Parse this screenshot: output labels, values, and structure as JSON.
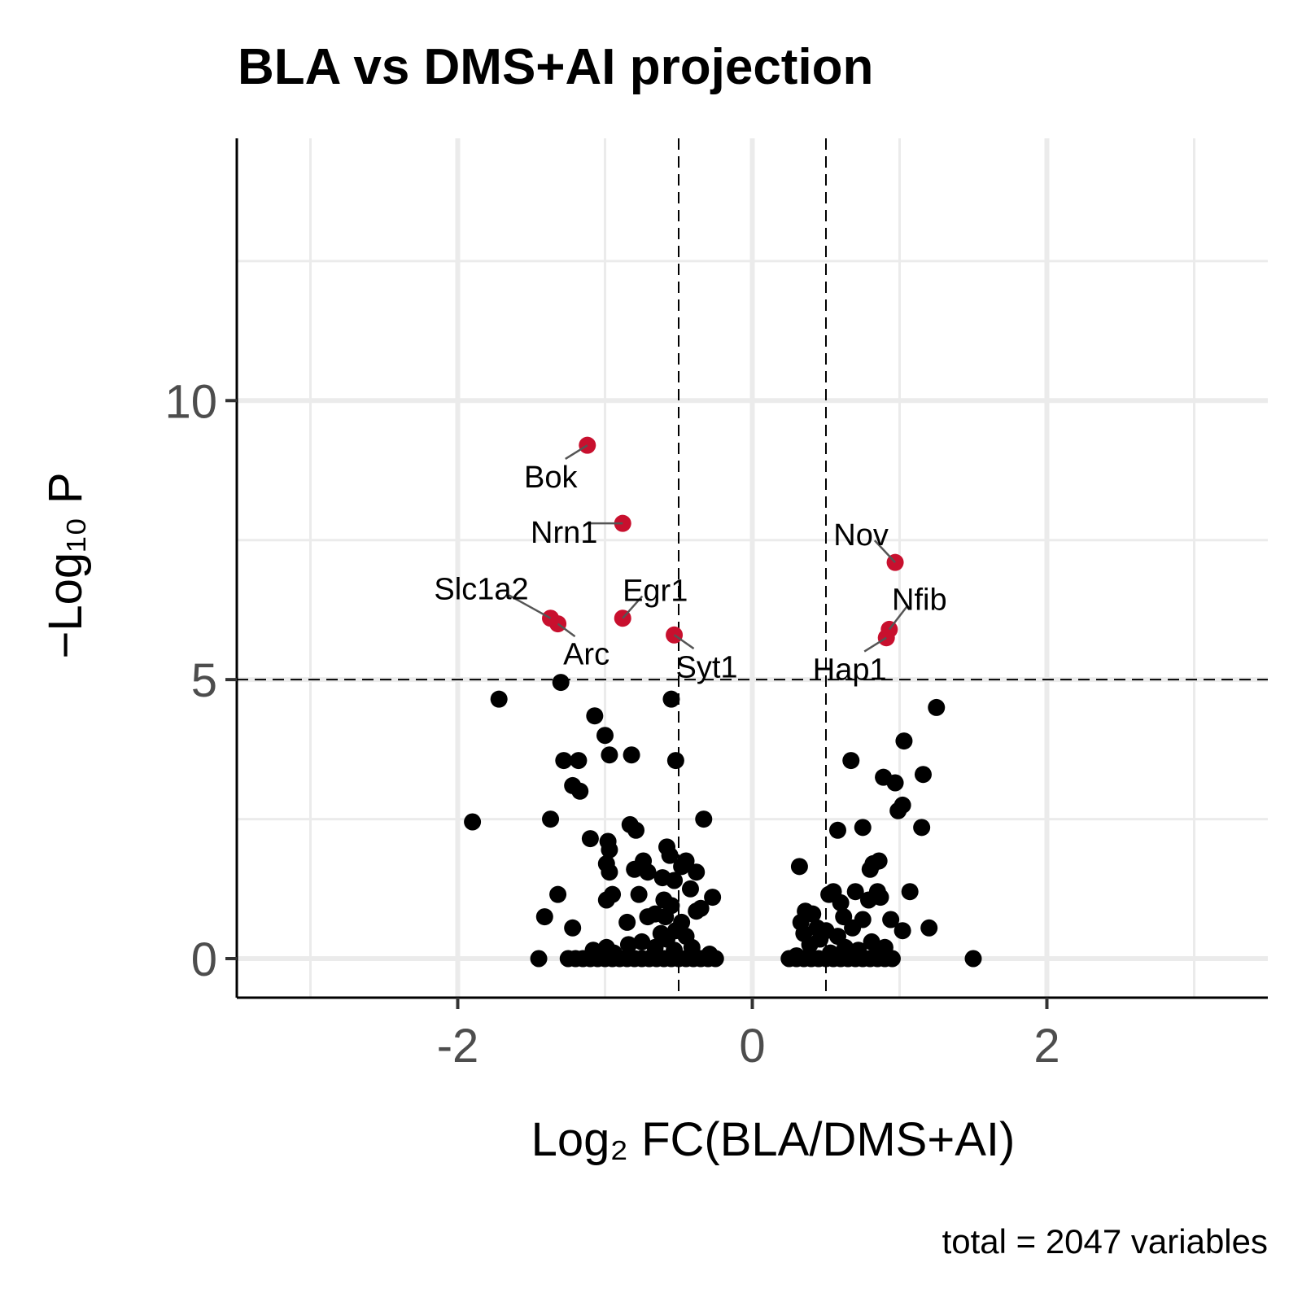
{
  "chart_data": {
    "type": "scatter",
    "title": "BLA vs DMS+AI projection",
    "xlabel": "Log₂ FC(BLA/DMS+AI)",
    "ylabel": "−Log₁₀ P",
    "caption": "total = 2047 variables",
    "xlim": [
      -3.5,
      3.5
    ],
    "ylim": [
      -0.7,
      14.7
    ],
    "x_ticks": [
      -2,
      0,
      2
    ],
    "x_tick_labels": [
      "-2",
      "0",
      "2"
    ],
    "y_ticks": [
      0,
      5,
      10
    ],
    "y_tick_labels": [
      "0",
      "5",
      "10"
    ],
    "grid": true,
    "fc_cutoff": [
      -0.5,
      0.5
    ],
    "p_cutoff": 5,
    "colors": {
      "significant": "#C8102E",
      "ns": "#000000"
    },
    "labeled_points": [
      {
        "label": "Bok",
        "x": -1.12,
        "y": 9.2
      },
      {
        "label": "Nrn1",
        "x": -0.88,
        "y": 7.8
      },
      {
        "label": "Slc1a2",
        "x": -1.37,
        "y": 6.1
      },
      {
        "label": "Arc",
        "x": -1.32,
        "y": 6.0
      },
      {
        "label": "Egr1",
        "x": -0.88,
        "y": 6.1
      },
      {
        "label": "Syt1",
        "x": -0.53,
        "y": 5.8
      },
      {
        "label": "Nov",
        "x": 0.97,
        "y": 7.1
      },
      {
        "label": "Nfib",
        "x": 0.93,
        "y": 5.9
      },
      {
        "label": "Hap1",
        "x": 0.91,
        "y": 5.75
      }
    ],
    "points": [
      [
        -1.72,
        4.65
      ],
      [
        -1.3,
        4.95
      ],
      [
        -0.55,
        4.65
      ],
      [
        -1.07,
        4.35
      ],
      [
        -1.0,
        4.0
      ],
      [
        -0.97,
        3.65
      ],
      [
        -0.82,
        3.65
      ],
      [
        -1.28,
        3.55
      ],
      [
        -1.18,
        3.55
      ],
      [
        -0.52,
        3.55
      ],
      [
        -1.22,
        3.1
      ],
      [
        -1.17,
        3.0
      ],
      [
        -1.9,
        2.45
      ],
      [
        -1.37,
        2.5
      ],
      [
        -0.33,
        2.5
      ],
      [
        -0.83,
        2.4
      ],
      [
        -0.79,
        2.3
      ],
      [
        -1.1,
        2.15
      ],
      [
        -0.98,
        2.1
      ],
      [
        -0.97,
        1.95
      ],
      [
        -0.58,
        2.0
      ],
      [
        -0.56,
        1.85
      ],
      [
        -0.45,
        1.75
      ],
      [
        -0.99,
        1.7
      ],
      [
        -0.74,
        1.75
      ],
      [
        -0.48,
        1.65
      ],
      [
        -0.97,
        1.55
      ],
      [
        -0.8,
        1.6
      ],
      [
        -0.71,
        1.55
      ],
      [
        -0.61,
        1.45
      ],
      [
        -0.38,
        1.55
      ],
      [
        -0.53,
        1.4
      ],
      [
        -0.42,
        1.25
      ],
      [
        -0.95,
        1.15
      ],
      [
        -0.99,
        1.05
      ],
      [
        -0.77,
        1.15
      ],
      [
        -0.6,
        1.05
      ],
      [
        -0.27,
        1.1
      ],
      [
        -1.32,
        1.15
      ],
      [
        -0.55,
        0.95
      ],
      [
        -0.38,
        0.85
      ],
      [
        -0.35,
        0.9
      ],
      [
        -0.66,
        0.8
      ],
      [
        -0.59,
        0.75
      ],
      [
        -0.71,
        0.75
      ],
      [
        -0.85,
        0.65
      ],
      [
        -0.48,
        0.65
      ],
      [
        -1.41,
        0.75
      ],
      [
        -1.22,
        0.55
      ],
      [
        -0.52,
        0.5
      ],
      [
        -0.62,
        0.45
      ],
      [
        -0.45,
        0.4
      ],
      [
        -0.58,
        0.35
      ],
      [
        -0.75,
        0.3
      ],
      [
        -0.84,
        0.25
      ],
      [
        -0.66,
        0.2
      ],
      [
        -0.53,
        0.15
      ],
      [
        -0.99,
        0.2
      ],
      [
        -0.94,
        0.1
      ],
      [
        -1.08,
        0.15
      ],
      [
        -0.41,
        0.2
      ],
      [
        -0.29,
        0.08
      ],
      [
        -1.45,
        0.0
      ],
      [
        -1.25,
        0.0
      ],
      [
        -1.2,
        0.0
      ],
      [
        -1.15,
        0.0
      ],
      [
        -1.1,
        0.0
      ],
      [
        -1.05,
        0.0
      ],
      [
        -1.0,
        0.0
      ],
      [
        -0.95,
        0.0
      ],
      [
        -0.9,
        0.0
      ],
      [
        -0.85,
        0.0
      ],
      [
        -0.8,
        0.0
      ],
      [
        -0.75,
        0.0
      ],
      [
        -0.7,
        0.0
      ],
      [
        -0.65,
        0.0
      ],
      [
        -0.6,
        0.0
      ],
      [
        -0.55,
        0.0
      ],
      [
        -0.5,
        0.0
      ],
      [
        -0.45,
        0.0
      ],
      [
        -0.4,
        0.0
      ],
      [
        -0.35,
        0.0
      ],
      [
        -0.3,
        0.0
      ],
      [
        -0.25,
        0.0
      ],
      [
        1.25,
        4.5
      ],
      [
        1.03,
        3.9
      ],
      [
        0.67,
        3.55
      ],
      [
        0.89,
        3.25
      ],
      [
        0.97,
        3.15
      ],
      [
        1.16,
        3.3
      ],
      [
        1.02,
        2.75
      ],
      [
        0.99,
        2.65
      ],
      [
        1.15,
        2.35
      ],
      [
        0.58,
        2.3
      ],
      [
        0.75,
        2.35
      ],
      [
        0.86,
        1.75
      ],
      [
        0.82,
        1.7
      ],
      [
        0.8,
        1.6
      ],
      [
        0.32,
        1.65
      ],
      [
        0.52,
        1.15
      ],
      [
        0.55,
        1.2
      ],
      [
        0.7,
        1.2
      ],
      [
        0.85,
        1.2
      ],
      [
        0.87,
        1.1
      ],
      [
        0.79,
        1.05
      ],
      [
        0.6,
        1.0
      ],
      [
        1.07,
        1.2
      ],
      [
        0.36,
        0.85
      ],
      [
        0.41,
        0.8
      ],
      [
        0.62,
        0.75
      ],
      [
        0.75,
        0.7
      ],
      [
        0.94,
        0.7
      ],
      [
        0.33,
        0.65
      ],
      [
        0.44,
        0.55
      ],
      [
        0.68,
        0.55
      ],
      [
        0.5,
        0.5
      ],
      [
        1.2,
        0.55
      ],
      [
        1.02,
        0.5
      ],
      [
        0.35,
        0.45
      ],
      [
        0.58,
        0.4
      ],
      [
        0.46,
        0.35
      ],
      [
        0.81,
        0.3
      ],
      [
        0.39,
        0.25
      ],
      [
        0.63,
        0.2
      ],
      [
        0.72,
        0.15
      ],
      [
        0.9,
        0.2
      ],
      [
        0.53,
        0.1
      ],
      [
        0.3,
        0.05
      ],
      [
        0.85,
        0.1
      ],
      [
        0.25,
        0.0
      ],
      [
        0.3,
        0.0
      ],
      [
        0.35,
        0.0
      ],
      [
        0.4,
        0.0
      ],
      [
        0.45,
        0.0
      ],
      [
        0.5,
        0.0
      ],
      [
        0.55,
        0.0
      ],
      [
        0.6,
        0.0
      ],
      [
        0.65,
        0.0
      ],
      [
        0.7,
        0.0
      ],
      [
        0.75,
        0.0
      ],
      [
        0.8,
        0.0
      ],
      [
        0.85,
        0.0
      ],
      [
        0.9,
        0.0
      ],
      [
        0.95,
        0.0
      ],
      [
        1.5,
        0.0
      ]
    ]
  }
}
